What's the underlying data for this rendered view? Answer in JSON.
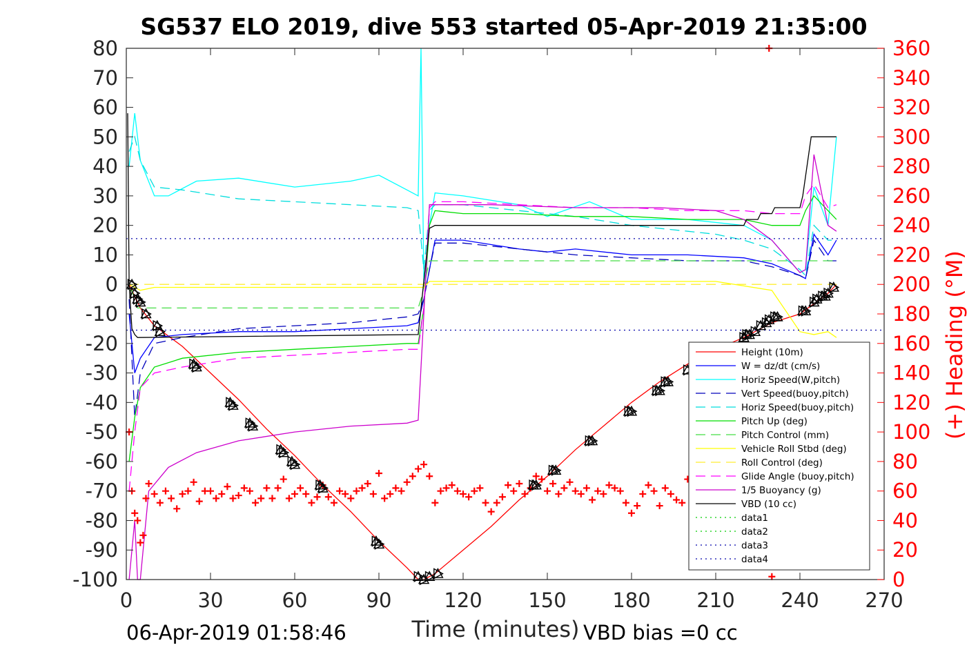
{
  "chart_data": {
    "type": "line",
    "title": "SG537 ELO 2019, dive 553 started 05-Apr-2019 21:35:00",
    "xlabel": "Time (minutes)",
    "ylabel_right": "(+) Heading (°M)",
    "xlim": [
      0,
      270
    ],
    "ylim": [
      -100,
      80
    ],
    "ylim_right": [
      0,
      360
    ],
    "xticks": [
      "0",
      "30",
      "60",
      "90",
      "120",
      "150",
      "180",
      "210",
      "240",
      "270"
    ],
    "yticks": [
      "80",
      "70",
      "60",
      "50",
      "40",
      "30",
      "20",
      "10",
      "0",
      "-10",
      "-20",
      "-30",
      "-40",
      "-50",
      "-60",
      "-70",
      "-80",
      "-90",
      "-100"
    ],
    "yticks_right": [
      "360",
      "340",
      "320",
      "300",
      "280",
      "260",
      "240",
      "220",
      "200",
      "180",
      "160",
      "140",
      "120",
      "100",
      "80",
      "60",
      "40",
      "20",
      "0"
    ],
    "grid": false,
    "legend_position": "bottom-right",
    "footer_left": "06-Apr-2019 01:58:46",
    "footer_right": "VBD bias =0 cc",
    "series": [
      {
        "name": "Height (10m)",
        "color": "#ff0000",
        "style": "solid",
        "x": [
          1,
          5,
          10,
          20,
          30,
          40,
          50,
          60,
          70,
          80,
          90,
          100,
          104,
          106,
          108,
          110,
          120,
          130,
          140,
          150,
          160,
          170,
          180,
          190,
          200,
          210,
          220,
          230,
          240,
          250,
          253
        ],
        "y": [
          0,
          -8,
          -14,
          -21,
          -30,
          -39,
          -49,
          -58,
          -68,
          -77,
          -87,
          -96,
          -100,
          -100,
          -99,
          -98,
          -90,
          -82,
          -73,
          -65,
          -56,
          -48,
          -40,
          -33,
          -27,
          -22,
          -18,
          -13,
          -10,
          -3,
          0
        ]
      },
      {
        "name": "W = dz/dt (cm/s)",
        "color": "#0000ff",
        "style": "solid",
        "x": [
          1,
          3,
          5,
          10,
          20,
          40,
          60,
          80,
          100,
          104,
          106,
          108,
          110,
          120,
          140,
          150,
          160,
          180,
          200,
          220,
          230,
          240,
          242,
          245,
          250,
          253
        ],
        "y": [
          -10,
          -30,
          -25,
          -18,
          -17,
          -16,
          -16,
          -15,
          -14,
          -13,
          -5,
          5,
          15,
          15,
          12,
          11,
          12,
          10,
          10,
          9,
          7,
          3,
          2,
          17,
          10,
          15
        ]
      },
      {
        "name": "Horiz Speed(W,pitch)",
        "color": "#00ffff",
        "style": "solid",
        "x": [
          1,
          3,
          5,
          10,
          15,
          25,
          40,
          60,
          80,
          90,
          100,
          104,
          105,
          106,
          108,
          110,
          120,
          140,
          150,
          165,
          180,
          200,
          220,
          230,
          240,
          242,
          245,
          250,
          253
        ],
        "y": [
          40,
          58,
          42,
          30,
          30,
          35,
          36,
          33,
          35,
          37,
          32,
          30,
          80,
          0,
          20,
          31,
          30,
          27,
          23,
          28,
          22,
          22,
          20,
          15,
          4,
          5,
          33,
          20,
          50
        ]
      },
      {
        "name": "Vert Speed(buoy,pitch)",
        "color": "#0000bb",
        "style": "dashed",
        "x": [
          1,
          3,
          5,
          10,
          20,
          40,
          60,
          80,
          100,
          104,
          106,
          108,
          110,
          120,
          140,
          160,
          180,
          200,
          220,
          230,
          240,
          242,
          245,
          250,
          253
        ],
        "y": [
          -5,
          -45,
          -30,
          -20,
          -18,
          -15,
          -14,
          -13,
          -11,
          -10,
          -5,
          5,
          14,
          14,
          12,
          10,
          9,
          8,
          8,
          6,
          3,
          2,
          15,
          8,
          8
        ]
      },
      {
        "name": "Horiz Speed(buoy,pitch)",
        "color": "#00dddd",
        "style": "dashed",
        "x": [
          1,
          3,
          5,
          10,
          20,
          40,
          60,
          80,
          100,
          104,
          106,
          108,
          110,
          120,
          140,
          160,
          180,
          200,
          210,
          220,
          230,
          240,
          242,
          245,
          250,
          253
        ],
        "y": [
          45,
          50,
          42,
          33,
          32,
          29,
          28,
          27,
          26,
          25,
          5,
          25,
          27,
          27,
          25,
          23,
          20,
          18,
          17,
          15,
          12,
          5,
          3,
          20,
          15,
          15
        ]
      },
      {
        "name": "Pitch Up (deg)",
        "color": "#00dd00",
        "style": "solid",
        "x": [
          1,
          3,
          5,
          10,
          20,
          40,
          60,
          80,
          100,
          104,
          106,
          108,
          110,
          120,
          140,
          160,
          180,
          200,
          220,
          230,
          240,
          242,
          245,
          250,
          253
        ],
        "y": [
          -60,
          -45,
          -35,
          -28,
          -25,
          -23,
          -22,
          -21,
          -20,
          -20,
          -8,
          20,
          25,
          24,
          24,
          23,
          23,
          22,
          22,
          20,
          20,
          25,
          30,
          25,
          22
        ]
      },
      {
        "name": "Pitch Control (mm)",
        "color": "#44dd44",
        "style": "dashed",
        "x": [
          1,
          2,
          4,
          104,
          105,
          108,
          110,
          253
        ],
        "y": [
          -2,
          -2,
          -8,
          -8,
          -5,
          8,
          8,
          8
        ]
      },
      {
        "name": "Vehicle Roll Stbd (deg)",
        "color": "#ffff00",
        "style": "solid",
        "x": [
          1,
          5,
          10,
          20,
          40,
          60,
          80,
          100,
          104,
          106,
          108,
          110,
          130,
          150,
          170,
          190,
          210,
          230,
          240,
          245,
          250,
          253
        ],
        "y": [
          0,
          -2,
          -1,
          -1,
          -1,
          -1,
          -1,
          -1,
          -1,
          -1,
          1,
          1,
          1,
          1,
          1,
          1,
          1,
          -2,
          -16,
          -17,
          -16,
          -18
        ]
      },
      {
        "name": "Roll Control (deg)",
        "color": "#ffee33",
        "style": "dashed",
        "x": [
          1,
          104,
          105,
          253
        ],
        "y": [
          0,
          0,
          0,
          0
        ]
      },
      {
        "name": "Glide Angle (buoy,pitch)",
        "color": "#ff00ff",
        "style": "dashed",
        "x": [
          1,
          3,
          5,
          10,
          20,
          40,
          60,
          80,
          100,
          104,
          106,
          108,
          110,
          120,
          140,
          160,
          180,
          200,
          220,
          230,
          240,
          242,
          245,
          250,
          253
        ],
        "y": [
          -70,
          -50,
          -35,
          -30,
          -28,
          -25,
          -24,
          -23,
          -22,
          -22,
          -8,
          26,
          28,
          28,
          27,
          26,
          26,
          25,
          25,
          24,
          24,
          30,
          34,
          26,
          27
        ]
      },
      {
        "name": "1/5 Buoyancy (g)",
        "color": "#cc00cc",
        "style": "solid",
        "x": [
          1,
          3,
          4,
          5,
          8,
          15,
          25,
          40,
          60,
          80,
          100,
          104,
          106,
          108,
          110,
          130,
          160,
          190,
          210,
          220,
          230,
          240,
          242,
          245,
          250,
          253
        ],
        "y": [
          -100,
          -80,
          -100,
          -100,
          -70,
          -62,
          -57,
          -53,
          -50,
          -48,
          -47,
          -46,
          -10,
          27,
          27,
          27,
          26,
          26,
          25,
          22,
          15,
          4,
          5,
          44,
          20,
          18
        ]
      },
      {
        "name": "VBD (10 cc)",
        "color": "#000000",
        "style": "solid",
        "x": [
          0.5,
          1,
          2,
          3,
          4,
          104,
          105,
          107,
          108,
          110,
          220,
          221,
          225,
          226,
          230,
          231,
          240,
          241,
          244,
          246,
          253
        ],
        "y": [
          58,
          0,
          -15,
          -17,
          -18,
          -17,
          -8,
          10,
          19,
          20,
          20,
          22,
          22,
          24,
          24,
          26,
          26,
          30,
          50,
          50,
          50
        ]
      },
      {
        "name": "data1",
        "color": "#00cc00",
        "style": "dotted",
        "x": [],
        "y": []
      },
      {
        "name": "data2",
        "color": "#00cc00",
        "style": "dotted",
        "x": [],
        "y": []
      },
      {
        "name": "data3",
        "color": "#0000aa",
        "style": "dotted",
        "x": [
          0,
          270
        ],
        "y": [
          15.5,
          15.5
        ]
      },
      {
        "name": "data4",
        "color": "#0000aa",
        "style": "dotted",
        "x": [
          0,
          270
        ],
        "y": [
          -15.5,
          -15.5
        ]
      }
    ],
    "heading": {
      "color": "#ff0000",
      "marker": "+",
      "x": [
        1,
        2,
        3,
        4,
        5,
        6,
        7,
        8,
        10,
        12,
        14,
        16,
        18,
        20,
        22,
        24,
        26,
        28,
        30,
        32,
        34,
        36,
        38,
        40,
        42,
        44,
        46,
        48,
        50,
        52,
        54,
        56,
        58,
        60,
        62,
        64,
        66,
        68,
        70,
        72,
        74,
        76,
        78,
        80,
        82,
        84,
        86,
        88,
        90,
        92,
        94,
        96,
        98,
        100,
        102,
        104,
        106,
        108,
        110,
        112,
        114,
        116,
        118,
        120,
        122,
        124,
        126,
        128,
        130,
        132,
        134,
        136,
        138,
        140,
        142,
        144,
        146,
        148,
        150,
        152,
        154,
        156,
        158,
        160,
        162,
        164,
        166,
        168,
        170,
        172,
        174,
        176,
        178,
        180,
        182,
        184,
        186,
        188,
        190,
        192,
        194,
        196,
        198,
        200,
        202,
        204,
        229,
        230
      ],
      "y": [
        100,
        60,
        45,
        40,
        25,
        30,
        55,
        65,
        58,
        52,
        60,
        55,
        48,
        58,
        60,
        66,
        53,
        60,
        60,
        55,
        58,
        63,
        55,
        57,
        62,
        60,
        52,
        55,
        62,
        55,
        62,
        68,
        55,
        58,
        62,
        58,
        52,
        56,
        64,
        56,
        52,
        60,
        58,
        55,
        60,
        62,
        65,
        58,
        72,
        55,
        58,
        62,
        60,
        66,
        70,
        75,
        78,
        70,
        52,
        60,
        62,
        64,
        60,
        58,
        56,
        60,
        62,
        52,
        46,
        52,
        56,
        64,
        60,
        65,
        58,
        62,
        70,
        68,
        60,
        65,
        58,
        62,
        66,
        60,
        58,
        62,
        54,
        60,
        58,
        64,
        62,
        60,
        52,
        45,
        50,
        58,
        64,
        60,
        50,
        62,
        58,
        54,
        52,
        68,
        54,
        60,
        360,
        2
      ]
    },
    "markers": {
      "color": "#000000",
      "marker": "triangles",
      "x": [
        2,
        3,
        4,
        5,
        7,
        11,
        12,
        24,
        25,
        37,
        38,
        44,
        45,
        55,
        56,
        59,
        60,
        69,
        70,
        89,
        90,
        104,
        106,
        108,
        111,
        145,
        146,
        152,
        153,
        165,
        166,
        179,
        180,
        189,
        190,
        192,
        193,
        200,
        220,
        221,
        222,
        224,
        226,
        228,
        229,
        231,
        232,
        241,
        242,
        245,
        246,
        248,
        249,
        250,
        252
      ],
      "y": [
        0,
        -3,
        -5,
        -6,
        -10,
        -14,
        -16,
        -27,
        -28,
        -40,
        -41,
        -47,
        -48,
        -56,
        -57,
        -60,
        -61,
        -68,
        -69,
        -87,
        -88,
        -99,
        -100,
        -99,
        -98,
        -68,
        -68,
        -63,
        -63,
        -53,
        -53,
        -43,
        -43,
        -36,
        -36,
        -33,
        -33,
        -29,
        -18,
        -17,
        -17,
        -16,
        -14,
        -13,
        -12,
        -11,
        -11,
        -9,
        -9,
        -6,
        -5,
        -4,
        -4,
        -3,
        -1
      ]
    }
  }
}
